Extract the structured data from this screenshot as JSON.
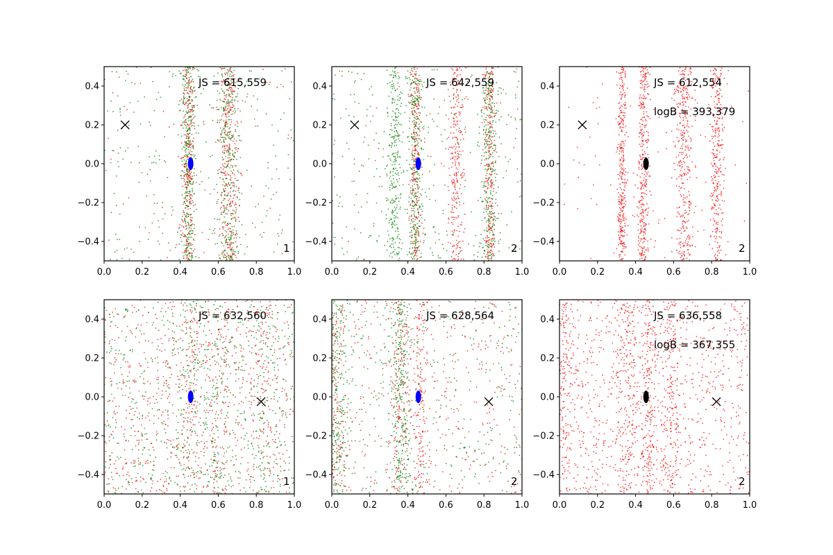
{
  "colors": {
    "red": "#ff0000",
    "green": "#008000",
    "blue": "#0000ff",
    "black": "#000000"
  },
  "chart_data": [
    {
      "type": "scatter",
      "panel": "row1-col1",
      "xlim": [
        0.0,
        1.0
      ],
      "ylim": [
        -0.5,
        0.5
      ],
      "xticks": [
        "0.0",
        "0.2",
        "0.4",
        "0.6",
        "0.8",
        "1.0"
      ],
      "yticks": [
        "-0.4",
        "-0.2",
        "0.0",
        "0.2",
        "0.4"
      ],
      "js_text": "JS = 615,559",
      "logb_text": "",
      "corner_label": "1",
      "marker_x": [
        0.11,
        0.2
      ],
      "center": [
        0.455,
        0.0
      ],
      "center_color": "blue",
      "series": [
        {
          "name": "red",
          "color": "red",
          "bands": [
            [
              0.44,
              0.018
            ],
            [
              0.655,
              0.025
            ]
          ],
          "n_band": 650,
          "n_uniform": 60
        },
        {
          "name": "green",
          "color": "green",
          "bands": [
            [
              0.44,
              0.018
            ],
            [
              0.655,
              0.028
            ]
          ],
          "n_band": 650,
          "n_uniform": 260
        }
      ]
    },
    {
      "type": "scatter",
      "panel": "row1-col2",
      "xlim": [
        0.0,
        1.0
      ],
      "ylim": [
        -0.5,
        0.5
      ],
      "xticks": [
        "0.0",
        "0.2",
        "0.4",
        "0.6",
        "0.8",
        "1.0"
      ],
      "yticks": [
        "-0.4",
        "-0.2",
        "0.0",
        "0.2",
        "0.4"
      ],
      "js_text": "JS = 642,559",
      "logb_text": "",
      "corner_label": "2",
      "marker_x": [
        0.12,
        0.2
      ],
      "center": [
        0.455,
        0.0
      ],
      "center_color": "blue",
      "series": [
        {
          "name": "red",
          "color": "red",
          "bands": [
            [
              0.44,
              0.015
            ],
            [
              0.655,
              0.022
            ],
            [
              0.83,
              0.018
            ]
          ],
          "n_band": 800,
          "n_uniform": 40
        },
        {
          "name": "green",
          "color": "green",
          "bands": [
            [
              0.33,
              0.02
            ],
            [
              0.44,
              0.018
            ],
            [
              0.83,
              0.022
            ]
          ],
          "n_band": 850,
          "n_uniform": 330
        }
      ]
    },
    {
      "type": "scatter",
      "panel": "row1-col3",
      "xlim": [
        0.0,
        1.0
      ],
      "ylim": [
        -0.5,
        0.5
      ],
      "xticks": [
        "0.0",
        "0.2",
        "0.4",
        "0.6",
        "0.8",
        "1.0"
      ],
      "yticks": [
        "-0.4",
        "-0.2",
        "0.0",
        "0.2",
        "0.4"
      ],
      "js_text": "JS = 612,554",
      "logb_text": "logB = 393,379",
      "corner_label": "2",
      "marker_x": [
        0.12,
        0.2
      ],
      "center": [
        0.455,
        0.0
      ],
      "center_color": "black",
      "series": [
        {
          "name": "red",
          "color": "red",
          "bands": [
            [
              0.33,
              0.012
            ],
            [
              0.44,
              0.015
            ],
            [
              0.655,
              0.025
            ],
            [
              0.83,
              0.018
            ]
          ],
          "n_band": 1300,
          "n_uniform": 90
        }
      ]
    },
    {
      "type": "scatter",
      "panel": "row2-col1",
      "xlim": [
        0.0,
        1.0
      ],
      "ylim": [
        -0.5,
        0.5
      ],
      "xticks": [
        "0.0",
        "0.2",
        "0.4",
        "0.6",
        "0.8",
        "1.0"
      ],
      "yticks": [
        "-0.4",
        "-0.2",
        "0.0",
        "0.2",
        "0.4"
      ],
      "js_text": "JS = 632,560",
      "logb_text": "",
      "corner_label": "1",
      "marker_x": [
        0.825,
        -0.025
      ],
      "center": [
        0.455,
        0.0
      ],
      "center_color": "blue",
      "series": [
        {
          "name": "red",
          "color": "red",
          "bands": [
            [
              0.45,
              0.03
            ],
            [
              0.6,
              0.04
            ],
            [
              0.85,
              0.05
            ]
          ],
          "n_band": 250,
          "n_uniform": 700
        },
        {
          "name": "green",
          "color": "green",
          "bands": [
            [
              0.45,
              0.03
            ],
            [
              0.6,
              0.04
            ],
            [
              0.85,
              0.05
            ]
          ],
          "n_band": 250,
          "n_uniform": 700
        }
      ]
    },
    {
      "type": "scatter",
      "panel": "row2-col2",
      "xlim": [
        0.0,
        1.0
      ],
      "ylim": [
        -0.5,
        0.5
      ],
      "xticks": [
        "0.0",
        "0.2",
        "0.4",
        "0.6",
        "0.8",
        "1.0"
      ],
      "yticks": [
        "-0.4",
        "-0.2",
        "0.0",
        "0.2",
        "0.4"
      ],
      "js_text": "JS = 628,564",
      "logb_text": "",
      "corner_label": "2",
      "marker_x": [
        0.825,
        -0.025
      ],
      "center": [
        0.455,
        0.0
      ],
      "center_color": "blue",
      "series": [
        {
          "name": "red",
          "color": "red",
          "bands": [
            [
              0.02,
              0.03
            ],
            [
              0.36,
              0.03
            ],
            [
              0.47,
              0.018
            ]
          ],
          "n_band": 450,
          "n_uniform": 400
        },
        {
          "name": "green",
          "color": "green",
          "bands": [
            [
              0.02,
              0.035
            ],
            [
              0.36,
              0.03
            ]
          ],
          "n_band": 600,
          "n_uniform": 350
        }
      ]
    },
    {
      "type": "scatter",
      "panel": "row2-col3",
      "xlim": [
        0.0,
        1.0
      ],
      "ylim": [
        -0.5,
        0.5
      ],
      "xticks": [
        "0.0",
        "0.2",
        "0.4",
        "0.6",
        "0.8",
        "1.0"
      ],
      "yticks": [
        "-0.4",
        "-0.2",
        "0.0",
        "0.2",
        "0.4"
      ],
      "js_text": "JS = 636,558",
      "logb_text": "logB = 367,355",
      "corner_label": "2",
      "marker_x": [
        0.825,
        -0.025
      ],
      "center": [
        0.455,
        0.0
      ],
      "center_color": "black",
      "series": [
        {
          "name": "red",
          "color": "red",
          "bands": [
            [
              0.03,
              0.03
            ],
            [
              0.36,
              0.03
            ],
            [
              0.47,
              0.018
            ],
            [
              0.58,
              0.03
            ]
          ],
          "n_band": 700,
          "n_uniform": 900
        }
      ]
    }
  ]
}
